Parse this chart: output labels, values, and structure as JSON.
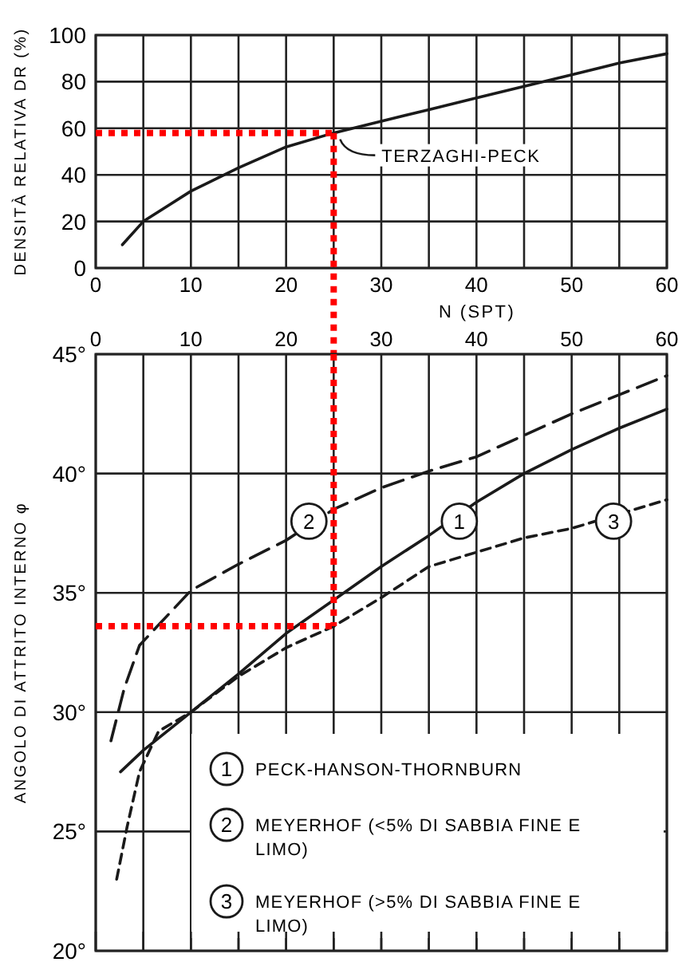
{
  "chart_data": [
    {
      "type": "line",
      "ylabel": "DENSITÀ RELATIVA DR (%)",
      "xlabel": "N (SPT)",
      "xlim": [
        0,
        60
      ],
      "xticks": [
        0,
        {
          "value": 5,
          "label": null
        },
        10,
        {
          "value": 15,
          "label": null
        },
        20,
        {
          "value": 25,
          "label": null
        },
        30,
        {
          "value": 35,
          "label": null
        },
        40,
        {
          "value": 45,
          "label": null
        },
        50,
        {
          "value": 55,
          "label": null
        },
        60
      ],
      "ylim": [
        0,
        100
      ],
      "yticks": [
        0,
        20,
        40,
        60,
        80,
        100
      ],
      "grid": true,
      "x": [
        2.8,
        5,
        10,
        15,
        20,
        25,
        30,
        35,
        40,
        45,
        50,
        55,
        60
      ],
      "series": [
        {
          "color": "#1a1a1a",
          "line_style": "solid",
          "values": [
            10,
            20,
            33,
            43,
            52,
            58,
            63,
            68,
            73,
            78,
            83,
            88,
            92
          ]
        }
      ],
      "ref_lines": [
        {
          "axis": "y",
          "value": 58,
          "color": "#ff0000",
          "line_style": "dotted"
        },
        {
          "axis": "x",
          "value": 25,
          "color": "#ff0000",
          "line_style": "dotted"
        }
      ],
      "annotations": [
        {
          "text": "TERZAGHI-PECK",
          "x": 25,
          "y": 58
        }
      ]
    },
    {
      "type": "line",
      "ylabel": "ANGOLO DI ATTRITO INTERNO φ",
      "xlim": [
        0,
        60
      ],
      "xticks": [
        0,
        {
          "value": 5,
          "label": null
        },
        10,
        {
          "value": 15,
          "label": null
        },
        20,
        {
          "value": 25,
          "label": null
        },
        30,
        {
          "value": 35,
          "label": null
        },
        40,
        {
          "value": 45,
          "label": null
        },
        50,
        {
          "value": 55,
          "label": null
        },
        60
      ],
      "ylim": [
        20,
        45
      ],
      "yticks": [
        {
          "value": 20,
          "label": "20°"
        },
        {
          "value": 25,
          "label": "25°"
        },
        {
          "value": 30,
          "label": "30°"
        },
        {
          "value": 35,
          "label": "35°"
        },
        {
          "value": 40,
          "label": "40°"
        },
        {
          "value": 45,
          "label": "45°"
        }
      ],
      "grid": true,
      "legend": "bottom right",
      "series": [
        {
          "name": "PECK-HANSON-THORNBURN",
          "color": "#1a1a1a",
          "line_style": "solid",
          "x": [
            2.6,
            5,
            10,
            15,
            20,
            25,
            30,
            35,
            40,
            45,
            50,
            55,
            60
          ],
          "values": [
            27.5,
            28.4,
            30,
            31.6,
            33.3,
            34.7,
            36.1,
            37.4,
            38.8,
            40,
            41,
            41.9,
            42.7
          ]
        },
        {
          "name": "MEYERHOF (<5% DI SABBIA FINE E LIMO)",
          "color": "#1a1a1a",
          "line_style": "dashed",
          "x": [
            1.6,
            3,
            4.6,
            10,
            15,
            20,
            25,
            30,
            35,
            40,
            45,
            50,
            55,
            60
          ],
          "values": [
            28.8,
            31,
            32.8,
            35.1,
            36.2,
            37.2,
            38.5,
            39.4,
            40.1,
            40.7,
            41.6,
            42.5,
            43.3,
            44.1
          ]
        },
        {
          "name": "MEYERHOF (>5% DI SABBIA FINE E LIMO)",
          "color": "#1a1a1a",
          "line_style": "dotted",
          "x": [
            2.2,
            3.3,
            4.6,
            6.6,
            10,
            15,
            20,
            25,
            30,
            35,
            40,
            45,
            50,
            60
          ],
          "values": [
            23,
            25.2,
            27.5,
            29.2,
            30,
            31.5,
            32.7,
            33.6,
            34.8,
            36.1,
            36.7,
            37.3,
            37.7,
            38.9
          ]
        }
      ],
      "ref_lines": [
        {
          "axis": "y",
          "value": 33.6,
          "color": "#ff0000",
          "line_style": "dotted"
        },
        {
          "axis": "x",
          "value": 25,
          "color": "#ff0000",
          "line_style": "dotted"
        }
      ],
      "annotations": [
        {
          "text": "1",
          "x": 38.2,
          "y": 38
        },
        {
          "text": "2",
          "x": 22.4,
          "y": 38
        },
        {
          "text": "3",
          "x": 54.4,
          "y": 38
        }
      ]
    }
  ]
}
